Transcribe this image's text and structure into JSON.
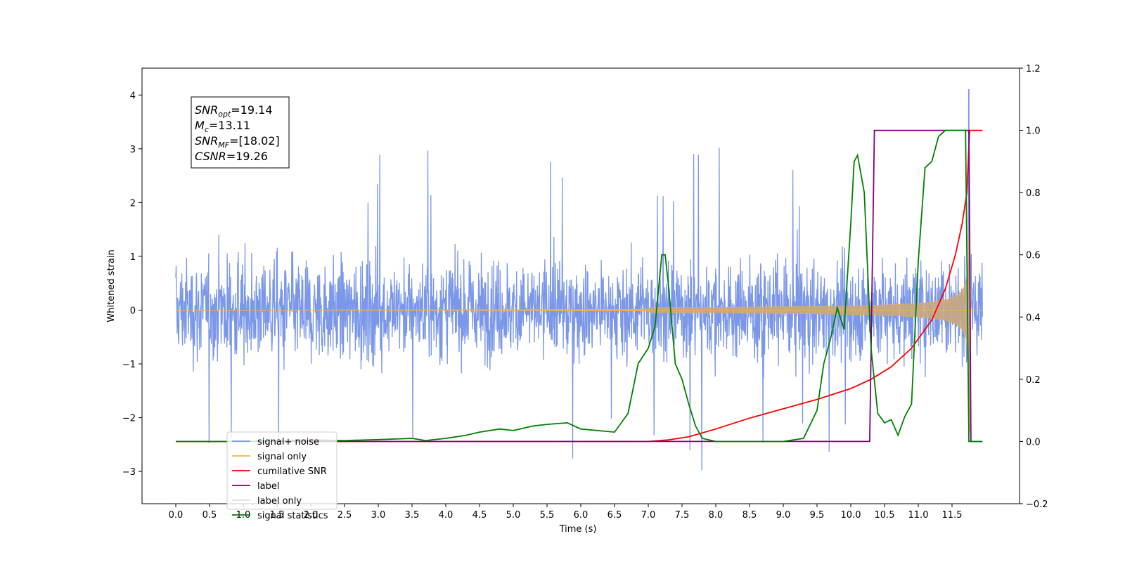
{
  "chart_data": {
    "type": "line",
    "xlabel": "Time (s)",
    "ylabel": "Whitened strain",
    "xlim": [
      -0.5,
      12.5
    ],
    "ylim": [
      -3.6,
      4.5
    ],
    "y2lim": [
      -0.2,
      1.2
    ],
    "x_ticks": [
      0.0,
      0.5,
      1.0,
      1.5,
      2.0,
      2.5,
      3.0,
      3.5,
      4.0,
      4.5,
      5.0,
      5.5,
      6.0,
      6.5,
      7.0,
      7.5,
      8.0,
      8.5,
      9.0,
      9.5,
      10.0,
      10.5,
      11.0,
      11.5
    ],
    "x_tick_labels": [
      "0.0",
      "0.5",
      "1.0",
      "1.5",
      "2.0",
      "2.5",
      "3.0",
      "3.5",
      "4.0",
      "4.5",
      "5.0",
      "5.5",
      "6.0",
      "6.5",
      "7.0",
      "7.5",
      "8.0",
      "8.5",
      "9.0",
      "9.5",
      "10.0",
      "10.5",
      "11.0",
      "11.5"
    ],
    "y_ticks": [
      -3,
      -2,
      -1,
      0,
      1,
      2,
      3,
      4
    ],
    "y_tick_labels": [
      "−3",
      "−2",
      "−1",
      "0",
      "1",
      "2",
      "3",
      "4"
    ],
    "y2_ticks": [
      -0.2,
      0.0,
      0.2,
      0.4,
      0.6,
      0.8,
      1.0,
      1.2
    ],
    "y2_tick_labels": [
      "−0.2",
      "0.0",
      "0.2",
      "0.4",
      "0.6",
      "0.8",
      "1.0",
      "1.2"
    ],
    "legend_position": "lower-left",
    "grid": false,
    "annotation": {
      "lines": [
        {
          "sym": "SNR",
          "sub": "opt",
          "value": "=19.14"
        },
        {
          "sym": "M",
          "sub": "c",
          "value": "=13.11"
        },
        {
          "sym": "SNR",
          "sub": "MF",
          "value": "=[18.02]"
        },
        {
          "sym": "CSNR",
          "sub": "",
          "value": "=19.26"
        }
      ]
    },
    "series": [
      {
        "name": "signal+ noise",
        "color": "#7b97e8",
        "axis": "left",
        "description_values": {
          "t_start": 0.0,
          "t_end": 11.95,
          "amplitude_typical": 1.3,
          "amplitude_peak": 4.1,
          "peak_time": 11.75
        }
      },
      {
        "name": "signal only",
        "color": "#f5b342",
        "axis": "left",
        "chirp": {
          "t_start": 0.0,
          "t_merge": 11.76,
          "t_end": 11.95,
          "amp_early": 0.01,
          "amp_peak": 2.6
        }
      },
      {
        "name": "cumilative SNR",
        "color": "#ff0000",
        "axis": "right",
        "x": [
          0.0,
          7.0,
          7.3,
          7.6,
          8.0,
          8.5,
          9.0,
          9.5,
          10.0,
          10.3,
          10.6,
          10.9,
          11.2,
          11.4,
          11.55,
          11.65,
          11.72,
          11.76,
          11.8,
          11.95
        ],
        "y": [
          0.0,
          0.0,
          0.005,
          0.015,
          0.04,
          0.075,
          0.105,
          0.135,
          0.17,
          0.2,
          0.24,
          0.3,
          0.39,
          0.49,
          0.6,
          0.7,
          0.8,
          1.0,
          1.0,
          1.0
        ]
      },
      {
        "name": "label",
        "color": "#800080",
        "axis": "right",
        "x": [
          0.0,
          10.28,
          10.35,
          11.75,
          11.78,
          11.95
        ],
        "y": [
          0.0,
          0.0,
          1.0,
          1.0,
          0.0,
          0.0
        ]
      },
      {
        "name": "label only",
        "color": "#dddddd",
        "axis": "none",
        "legend_only": true
      },
      {
        "name": "signal statistics",
        "color": "#008000",
        "axis": "right",
        "x": [
          0.0,
          1.0,
          2.0,
          2.5,
          3.0,
          3.5,
          3.7,
          4.0,
          4.3,
          4.5,
          4.8,
          5.0,
          5.3,
          5.5,
          5.8,
          6.0,
          6.5,
          6.7,
          6.85,
          7.0,
          7.1,
          7.2,
          7.25,
          7.3,
          7.4,
          7.5,
          7.6,
          7.7,
          7.8,
          8.0,
          8.5,
          9.0,
          9.3,
          9.5,
          9.6,
          9.7,
          9.8,
          9.9,
          10.0,
          10.05,
          10.1,
          10.2,
          10.3,
          10.4,
          10.5,
          10.6,
          10.7,
          10.8,
          10.9,
          11.0,
          11.1,
          11.2,
          11.3,
          11.4,
          11.5,
          11.6,
          11.7,
          11.75,
          11.8,
          11.95
        ],
        "y": [
          0.0,
          0.0,
          0.005,
          0.003,
          0.006,
          0.01,
          0.003,
          0.01,
          0.02,
          0.03,
          0.04,
          0.035,
          0.05,
          0.055,
          0.06,
          0.04,
          0.03,
          0.09,
          0.25,
          0.3,
          0.37,
          0.6,
          0.6,
          0.5,
          0.25,
          0.2,
          0.12,
          0.05,
          0.01,
          0.0,
          0.0,
          0.0,
          0.01,
          0.1,
          0.25,
          0.33,
          0.43,
          0.36,
          0.7,
          0.9,
          0.92,
          0.8,
          0.3,
          0.09,
          0.06,
          0.07,
          0.02,
          0.08,
          0.12,
          0.58,
          0.88,
          0.9,
          0.98,
          1.0,
          1.0,
          1.0,
          1.0,
          0.0,
          0.0,
          0.0
        ]
      }
    ]
  }
}
